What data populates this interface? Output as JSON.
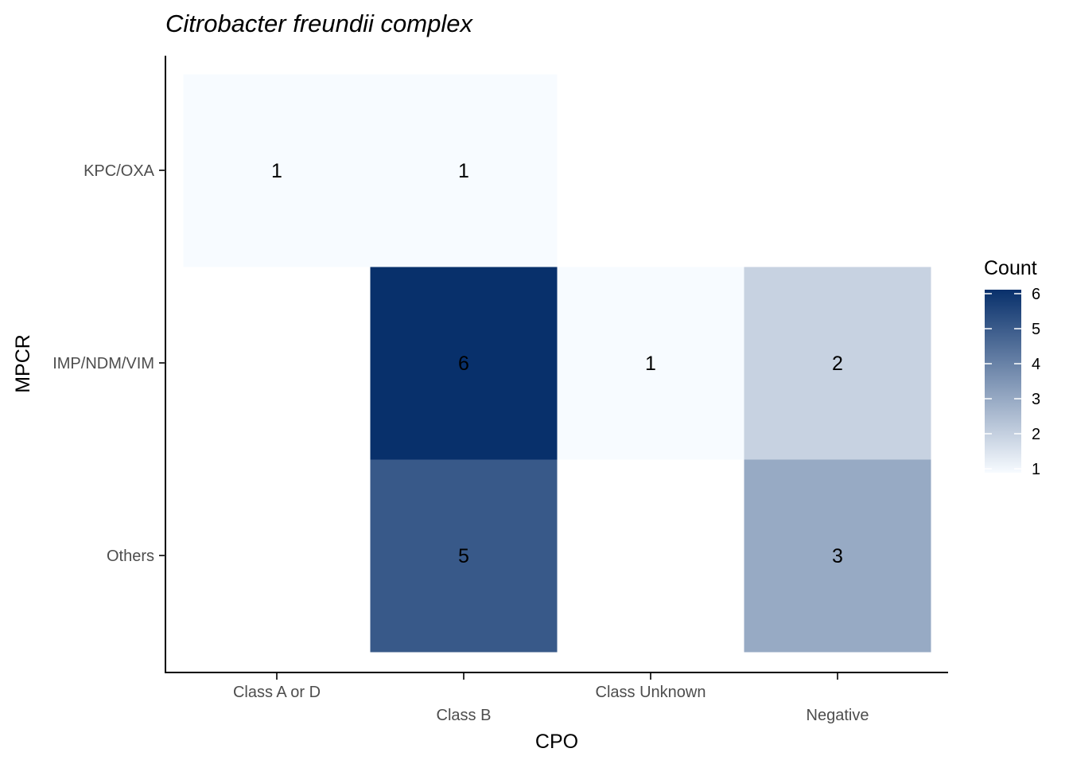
{
  "chart_data": {
    "type": "heatmap",
    "title": "Citrobacter freundii complex",
    "xlabel": "CPO",
    "ylabel": "MPCR",
    "x_categories": [
      "Class A or D",
      "Class B",
      "Class Unknown",
      "Negative"
    ],
    "y_categories": [
      "KPC/OXA",
      "IMP/NDM/VIM",
      "Others"
    ],
    "cells": [
      {
        "x": "Class A or D",
        "y": "KPC/OXA",
        "value": 1
      },
      {
        "x": "Class B",
        "y": "KPC/OXA",
        "value": 1
      },
      {
        "x": "Class B",
        "y": "IMP/NDM/VIM",
        "value": 6
      },
      {
        "x": "Class Unknown",
        "y": "IMP/NDM/VIM",
        "value": 1
      },
      {
        "x": "Negative",
        "y": "IMP/NDM/VIM",
        "value": 2
      },
      {
        "x": "Class B",
        "y": "Others",
        "value": 5
      },
      {
        "x": "Negative",
        "y": "Others",
        "value": 3
      }
    ],
    "legend": {
      "title": "Count",
      "ticks": [
        1,
        2,
        3,
        4,
        5,
        6
      ],
      "low_color": "#f7fbff",
      "high_color": "#08306b"
    },
    "grid": false
  }
}
